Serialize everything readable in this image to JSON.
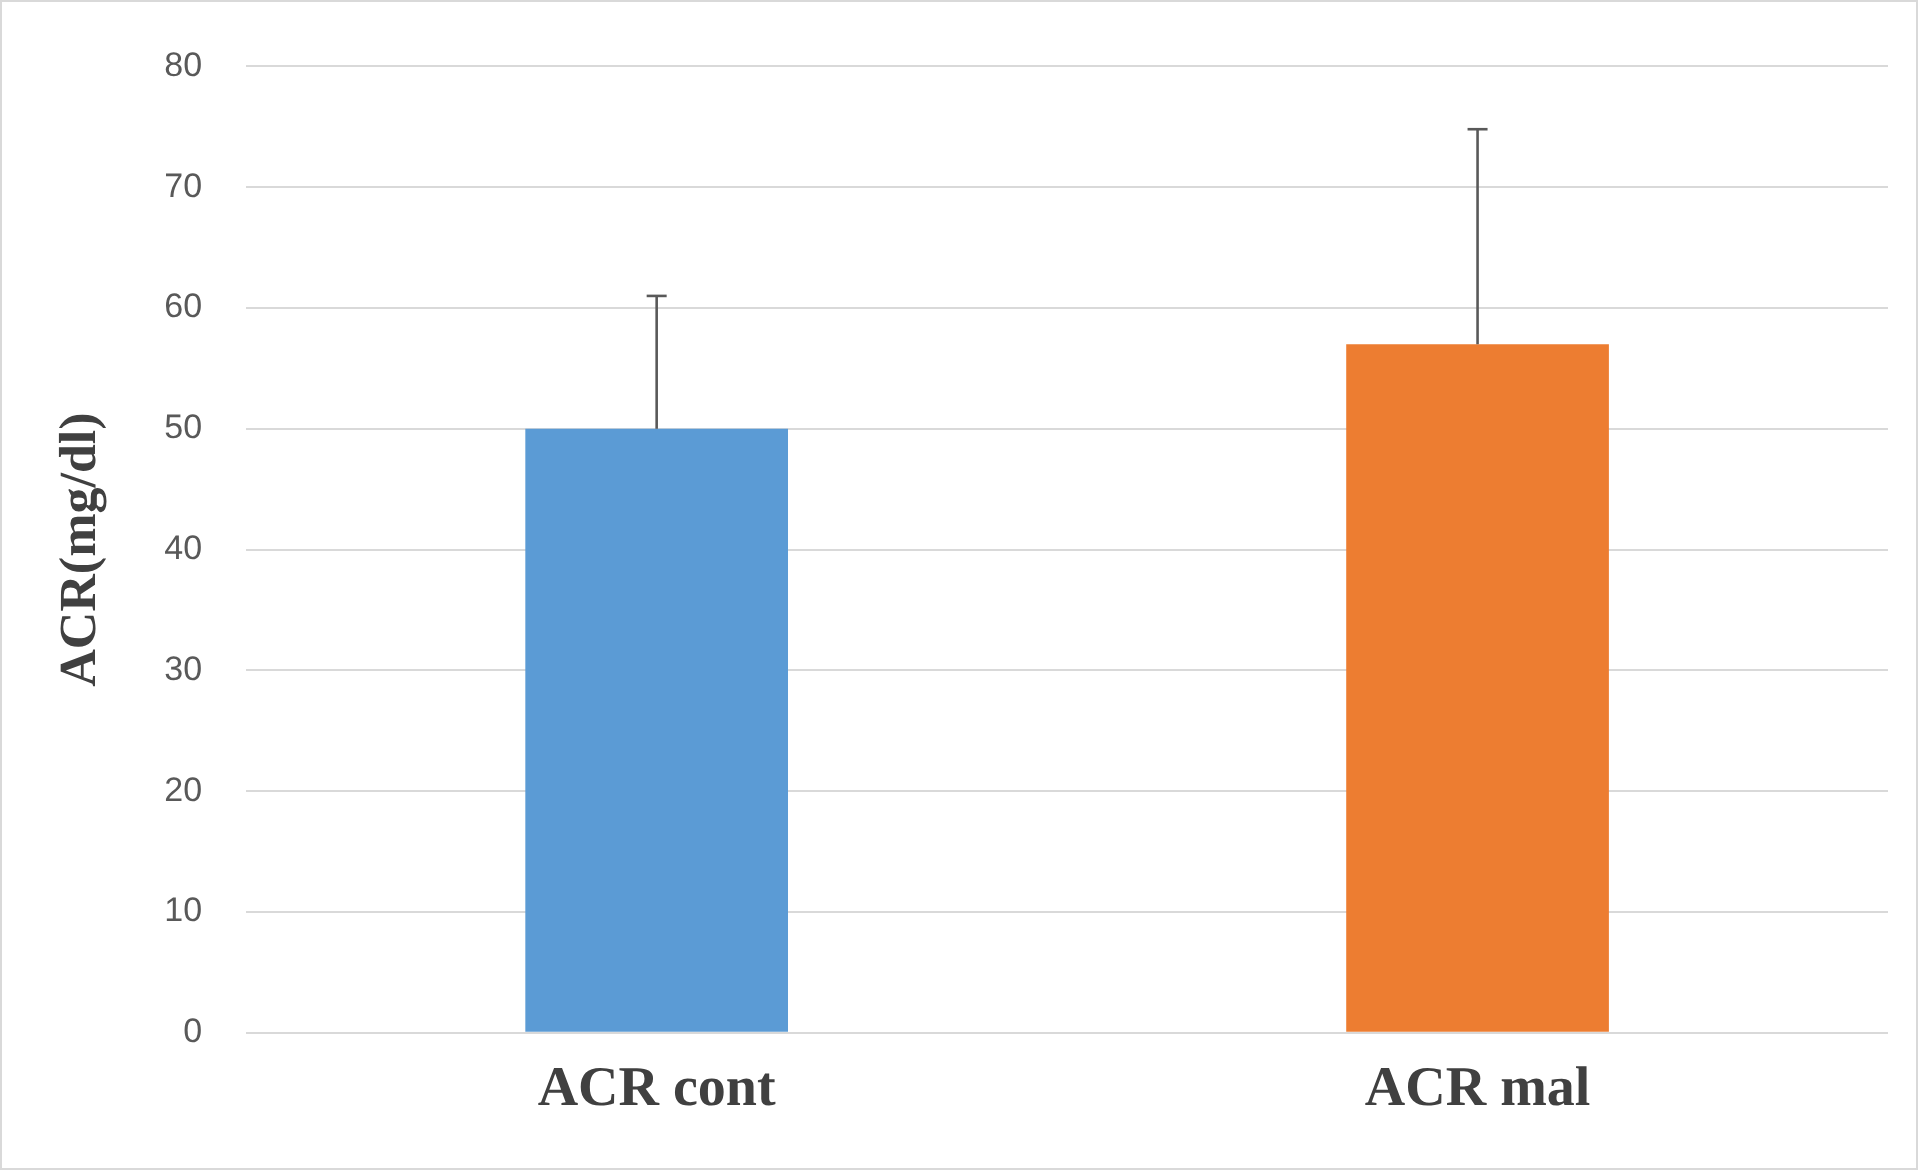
{
  "chart_data": {
    "type": "bar",
    "ylabel": "ACR(mg/dl)",
    "categories": [
      "ACR cont",
      "ACR mal"
    ],
    "values": [
      50,
      57
    ],
    "colors": [
      "#5b9bd5",
      "#ed7d31"
    ],
    "errors": [
      [
        50,
        61
      ],
      [
        57,
        74.8
      ]
    ],
    "ylim": [
      0,
      80
    ],
    "yticks": [
      0,
      10,
      20,
      30,
      40,
      50,
      60,
      70,
      80
    ],
    "grid": "y"
  }
}
